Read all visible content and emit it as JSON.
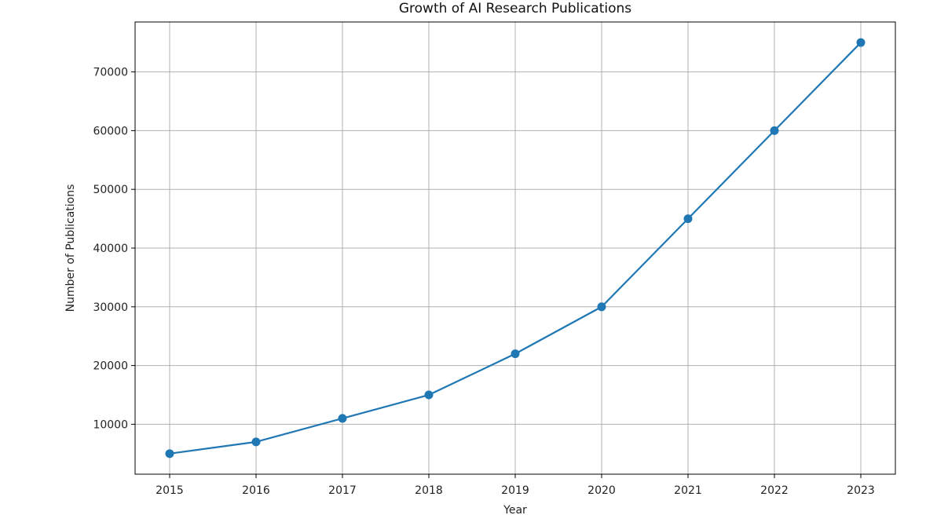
{
  "chart_data": {
    "type": "line",
    "title": "Growth of AI Research Publications",
    "xlabel": "Year",
    "ylabel": "Number of Publications",
    "x": [
      2015,
      2016,
      2017,
      2018,
      2019,
      2020,
      2021,
      2022,
      2023
    ],
    "x_tick_labels": [
      "2015",
      "2016",
      "2017",
      "2018",
      "2019",
      "2020",
      "2021",
      "2022",
      "2023"
    ],
    "series": [
      {
        "values": [
          5000,
          7000,
          11000,
          15000,
          22000,
          30000,
          45000,
          60000,
          75000
        ],
        "color": "#1f77b4",
        "marker": "circle"
      }
    ],
    "y_ticks": [
      10000,
      20000,
      30000,
      40000,
      50000,
      60000,
      70000
    ],
    "y_tick_labels": [
      "10000",
      "20000",
      "30000",
      "40000",
      "50000",
      "60000",
      "70000"
    ],
    "xlim": [
      2014.6,
      2023.4
    ],
    "ylim": [
      1500,
      78500
    ],
    "grid": true,
    "grid_color": "#b0b0b0"
  }
}
